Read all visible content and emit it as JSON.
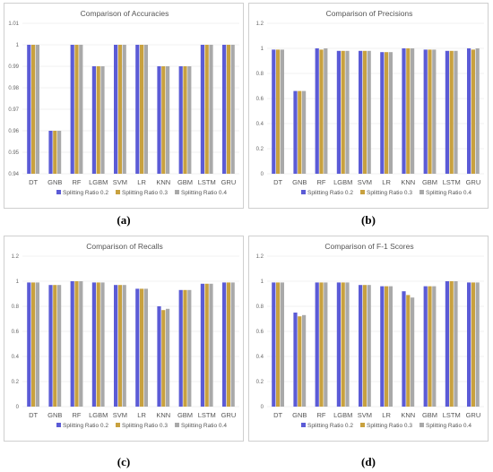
{
  "colors": [
    "#5b5bd6",
    "#c8a13f",
    "#a9a9a9"
  ],
  "categories": [
    "DT",
    "GNB",
    "RF",
    "LGBM",
    "SVM",
    "LR",
    "KNN",
    "GBM",
    "LSTM",
    "GRU"
  ],
  "series_names": [
    "Splitting Ratio 0.2",
    "Splitting Ratio 0.3",
    "Splitting Ratio 0.4"
  ],
  "panel_labels": [
    "(a)",
    "(b)",
    "(c)",
    "(d)"
  ],
  "chart_data": [
    {
      "type": "bar",
      "title": "Comparison of Accuracies",
      "categories": [
        "DT",
        "GNB",
        "RF",
        "LGBM",
        "SVM",
        "LR",
        "KNN",
        "GBM",
        "LSTM",
        "GRU"
      ],
      "ylim": [
        0.94,
        1.01
      ],
      "yticks": [
        "0.94",
        "0.95",
        "0.96",
        "0.97",
        "0.98",
        "0.99",
        "1",
        "1.01"
      ],
      "series": [
        {
          "name": "Splitting Ratio 0.2",
          "values": [
            1,
            0.96,
            1,
            0.99,
            1,
            1,
            0.99,
            0.99,
            1,
            1
          ]
        },
        {
          "name": "Splitting Ratio 0.3",
          "values": [
            1,
            0.96,
            1,
            0.99,
            1,
            1,
            0.99,
            0.99,
            1,
            1
          ]
        },
        {
          "name": "Splitting Ratio 0.4",
          "values": [
            1,
            0.96,
            1,
            0.99,
            1,
            1,
            0.99,
            0.99,
            1,
            1
          ]
        }
      ],
      "legend": "bottom"
    },
    {
      "type": "bar",
      "title": "Comparison of Precisions",
      "categories": [
        "DT",
        "GNB",
        "RF",
        "LGBM",
        "SVM",
        "LR",
        "KNN",
        "GBM",
        "LSTM",
        "GRU"
      ],
      "ylim": [
        0,
        1.2
      ],
      "yticks": [
        "0",
        "0.2",
        "0.4",
        "0.6",
        "0.8",
        "1",
        "1.2"
      ],
      "series": [
        {
          "name": "Splitting Ratio 0.2",
          "values": [
            0.99,
            0.66,
            1.0,
            0.98,
            0.98,
            0.97,
            1.0,
            0.99,
            0.98,
            1.0
          ]
        },
        {
          "name": "Splitting Ratio 0.3",
          "values": [
            0.99,
            0.66,
            0.99,
            0.98,
            0.98,
            0.97,
            1.0,
            0.99,
            0.98,
            0.99
          ]
        },
        {
          "name": "Splitting Ratio 0.4",
          "values": [
            0.99,
            0.66,
            1.0,
            0.98,
            0.98,
            0.97,
            1.0,
            0.99,
            0.98,
            1.0
          ]
        }
      ],
      "legend": "bottom"
    },
    {
      "type": "bar",
      "title": "Comparison of Recalls",
      "categories": [
        "DT",
        "GNB",
        "RF",
        "LGBM",
        "SVM",
        "LR",
        "KNN",
        "GBM",
        "LSTM",
        "GRU"
      ],
      "ylim": [
        0,
        1.2
      ],
      "yticks": [
        "0",
        "0.2",
        "0.4",
        "0.6",
        "0.8",
        "1",
        "1.2"
      ],
      "series": [
        {
          "name": "Splitting Ratio 0.2",
          "values": [
            0.99,
            0.97,
            1.0,
            0.99,
            0.97,
            0.94,
            0.8,
            0.93,
            0.98,
            0.99
          ]
        },
        {
          "name": "Splitting Ratio 0.3",
          "values": [
            0.99,
            0.97,
            1.0,
            0.99,
            0.97,
            0.94,
            0.77,
            0.93,
            0.98,
            0.99
          ]
        },
        {
          "name": "Splitting Ratio 0.4",
          "values": [
            0.99,
            0.97,
            1.0,
            0.99,
            0.97,
            0.94,
            0.78,
            0.93,
            0.98,
            0.99
          ]
        }
      ],
      "legend": "bottom"
    },
    {
      "type": "bar",
      "title": "Comparison of F-1 Scores",
      "categories": [
        "DT",
        "GNB",
        "RF",
        "LGBM",
        "SVM",
        "LR",
        "KNN",
        "GBM",
        "LSTM",
        "GRU"
      ],
      "ylim": [
        0,
        1.2
      ],
      "yticks": [
        "0",
        "0.2",
        "0.4",
        "0.6",
        "0.8",
        "1",
        "1.2"
      ],
      "series": [
        {
          "name": "Splitting Ratio 0.2",
          "values": [
            0.99,
            0.75,
            0.99,
            0.99,
            0.97,
            0.96,
            0.92,
            0.96,
            1.0,
            0.99
          ]
        },
        {
          "name": "Splitting Ratio 0.3",
          "values": [
            0.99,
            0.72,
            0.99,
            0.99,
            0.97,
            0.96,
            0.89,
            0.96,
            1.0,
            0.99
          ]
        },
        {
          "name": "Splitting Ratio 0.4",
          "values": [
            0.99,
            0.73,
            0.99,
            0.99,
            0.97,
            0.96,
            0.87,
            0.96,
            1.0,
            0.99
          ]
        }
      ],
      "legend": "bottom"
    }
  ]
}
